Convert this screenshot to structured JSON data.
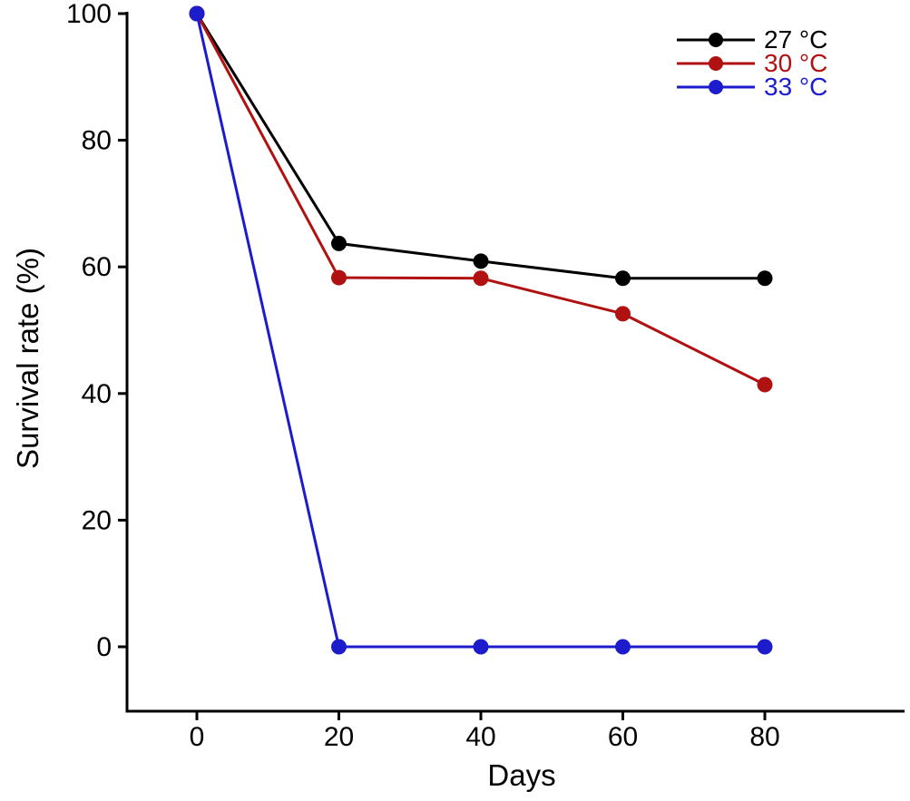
{
  "figure": {
    "background": "#ffffff",
    "axis_color": "#000000"
  },
  "chart_data": {
    "type": "line",
    "title": "",
    "xlabel": "Days",
    "ylabel": "Survival rate (%)",
    "x": [
      0,
      20,
      40,
      60,
      80
    ],
    "series": [
      {
        "name": "27 °C",
        "color": "#000000",
        "values": [
          100,
          63.7,
          60.9,
          58.2,
          58.2
        ]
      },
      {
        "name": "30 °C",
        "color": "#b01111",
        "values": [
          100,
          58.3,
          58.2,
          52.6,
          41.4
        ]
      },
      {
        "name": "33 °C",
        "color": "#1c1ccd",
        "values": [
          100,
          0,
          0,
          0,
          0
        ]
      }
    ],
    "xticks": [
      0,
      20,
      40,
      60,
      80
    ],
    "yticks": [
      0,
      20,
      40,
      60,
      80,
      100
    ],
    "xlim": [
      0,
      80
    ],
    "ylim": [
      0,
      100
    ],
    "grid": false,
    "legend_position": "top-right",
    "marker": "circle"
  }
}
